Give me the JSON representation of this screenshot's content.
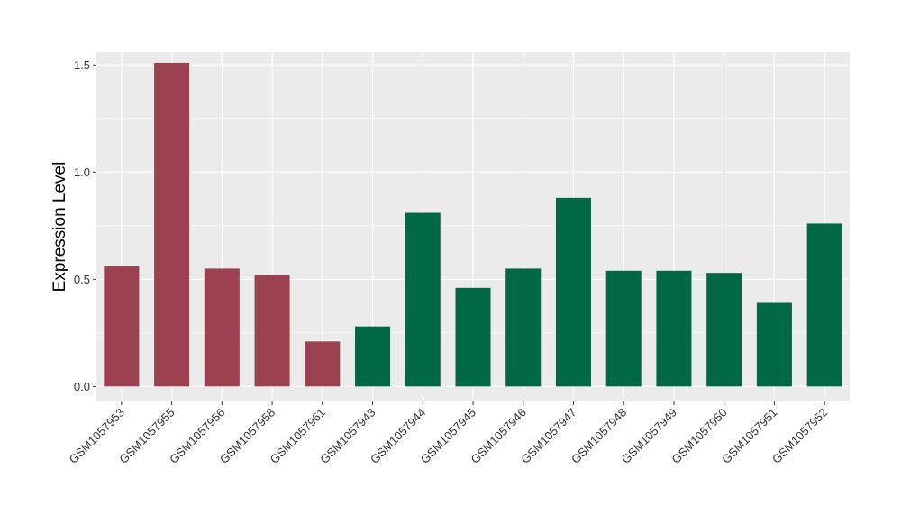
{
  "chart_data": {
    "type": "bar",
    "title": "",
    "xlabel": "",
    "ylabel": "Expression Level",
    "ylim": [
      -0.07,
      1.56
    ],
    "yticks": [
      0.0,
      0.5,
      1.0,
      1.5
    ],
    "ytick_labels": [
      "0.0",
      "0.5",
      "1.0",
      "1.5"
    ],
    "grid": true,
    "legend": "none",
    "categories": [
      "GSM1057953",
      "GSM1057955",
      "GSM1057956",
      "GSM1057958",
      "GSM1057961",
      "GSM1057943",
      "GSM1057944",
      "GSM1057945",
      "GSM1057946",
      "GSM1057947",
      "GSM1057948",
      "GSM1057949",
      "GSM1057950",
      "GSM1057951",
      "GSM1057952"
    ],
    "values": [
      0.56,
      1.51,
      0.55,
      0.52,
      0.21,
      0.28,
      0.81,
      0.46,
      0.55,
      0.88,
      0.54,
      0.54,
      0.53,
      0.39,
      0.76
    ],
    "colors": [
      "#9b4150",
      "#9b4150",
      "#9b4150",
      "#9b4150",
      "#9b4150",
      "#006845",
      "#006845",
      "#006845",
      "#006845",
      "#006845",
      "#006845",
      "#006845",
      "#006845",
      "#006845",
      "#006845"
    ],
    "panel_background": "#ebebeb",
    "grid_color": "#ffffff"
  }
}
